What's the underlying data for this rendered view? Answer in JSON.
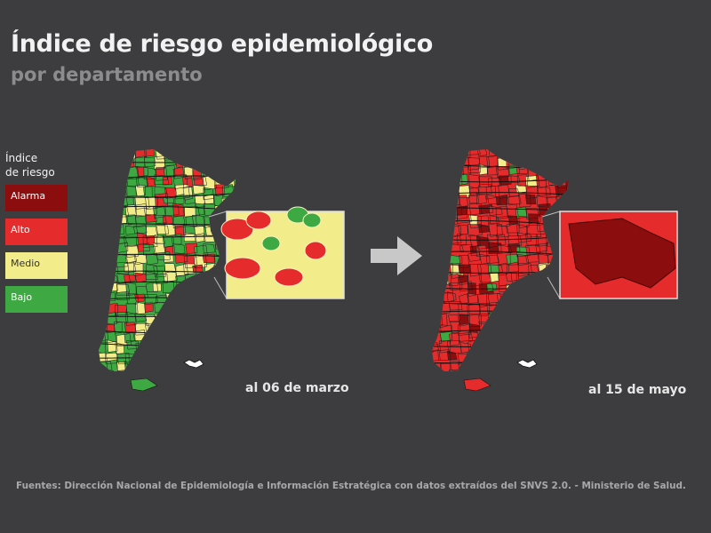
{
  "header": {
    "title": "Índice de riesgo epidemiológico",
    "subtitle": "por departamento"
  },
  "legend": {
    "title_line1": "Índice",
    "title_line2": "de riesgo",
    "items": [
      {
        "label": "Alarma",
        "color": "#8b0d0d"
      },
      {
        "label": "Alto",
        "color": "#e52b2b"
      },
      {
        "label": "Medio",
        "color": "#f2ec8a"
      },
      {
        "label": "Bajo",
        "color": "#3ea843"
      }
    ]
  },
  "maps": [
    {
      "date_label": "al 06 de marzo",
      "dominant_level": "Bajo",
      "mix": [
        "Bajo",
        "Medio",
        "Alto"
      ],
      "inset_dominant": "Medio"
    },
    {
      "date_label": "al 15 de mayo",
      "dominant_level": "Alto",
      "mix": [
        "Alto",
        "Alarma",
        "Medio",
        "Bajo"
      ],
      "inset_dominant": "Alarma"
    }
  ],
  "footer": {
    "source": "Fuentes: Dirección Nacional de Epidemiología e Información Estratégica con datos extraídos del SNVS 2.0. - Ministerio de Salud."
  },
  "colors": {
    "background": "#3d3d3f",
    "arrow": "#c8c8c8",
    "borders": "#1e1e1e"
  }
}
